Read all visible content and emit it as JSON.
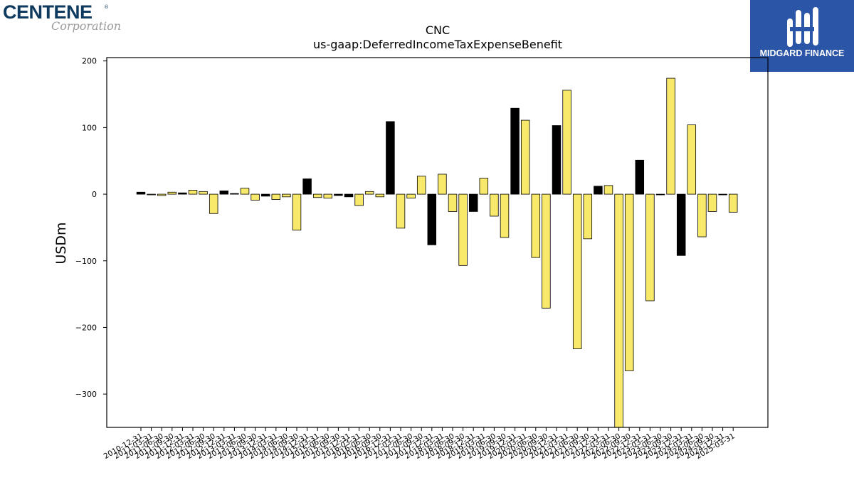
{
  "logos": {
    "left": {
      "name": "CENTENE",
      "sub": "Corporation",
      "reg": "®"
    },
    "right": {
      "name": "MIDGARD FINANCE"
    }
  },
  "colors": {
    "positive": "#000000",
    "negative_or_flow": "#f9e96b",
    "logo_bg": "#2b55a7"
  },
  "chart_data": {
    "type": "bar",
    "title": "CNC",
    "subtitle": "us-gaap:DeferredIncomeTaxExpenseBenefit",
    "xlabel": "",
    "ylabel": "USDm",
    "ylim": [
      -350,
      205
    ],
    "yticks": [
      200,
      100,
      0,
      -100,
      -200,
      -300
    ],
    "ytick_labels": [
      "200",
      "100",
      "0",
      "−100",
      "−200",
      "−300"
    ],
    "grid": false,
    "categories": [
      "2010-12-31",
      "2011-03-31",
      "2011-06-30",
      "2011-09-30",
      "2011-12-31",
      "2012-03-31",
      "2012-06-30",
      "2012-09-30",
      "2012-12-31",
      "2013-03-31",
      "2013-06-30",
      "2013-09-30",
      "2013-12-31",
      "2014-03-31",
      "2014-06-30",
      "2014-09-30",
      "2014-12-31",
      "2015-03-31",
      "2015-06-30",
      "2015-09-30",
      "2015-12-31",
      "2016-03-31",
      "2016-06-30",
      "2016-09-30",
      "2016-12-31",
      "2017-03-31",
      "2017-06-30",
      "2017-09-30",
      "2017-12-31",
      "2018-03-31",
      "2018-06-30",
      "2018-09-30",
      "2018-12-31",
      "2019-03-31",
      "2019-06-30",
      "2019-09-30",
      "2019-12-31",
      "2020-03-31",
      "2020-06-30",
      "2020-09-30",
      "2020-12-31",
      "2021-03-31",
      "2021-06-30",
      "2021-09-30",
      "2021-12-31",
      "2022-03-31",
      "2022-06-30",
      "2022-09-30",
      "2022-12-31",
      "2023-03-31",
      "2023-06-30",
      "2023-09-30",
      "2023-12-31",
      "2024-03-31",
      "2024-06-30",
      "2024-09-30",
      "2024-12-31",
      "2025-03-31"
    ],
    "values": [
      3,
      -1,
      -2,
      3,
      2,
      6,
      4,
      -29,
      5,
      1,
      9,
      -9,
      -3,
      -8,
      -4,
      -54,
      23,
      -5,
      -6,
      -2,
      -4,
      -17,
      4,
      -4,
      109,
      -51,
      -6,
      27,
      -76,
      30,
      -26,
      -107,
      -26,
      24,
      -33,
      -65,
      129,
      111,
      -95,
      -171,
      103,
      156,
      -232,
      -67,
      12,
      13,
      -350,
      -265,
      51,
      -160,
      -1,
      174,
      -92,
      104,
      -64,
      -26,
      -1,
      -27
    ],
    "fill": [
      "k",
      "y",
      "y",
      "y",
      "k",
      "y",
      "y",
      "y",
      "k",
      "k",
      "y",
      "y",
      "k",
      "y",
      "y",
      "y",
      "k",
      "y",
      "y",
      "k",
      "k",
      "y",
      "y",
      "y",
      "k",
      "y",
      "y",
      "y",
      "k",
      "y",
      "y",
      "y",
      "k",
      "y",
      "y",
      "y",
      "k",
      "y",
      "y",
      "y",
      "k",
      "y",
      "y",
      "y",
      "k",
      "y",
      "y",
      "y",
      "k",
      "y",
      "k",
      "y",
      "k",
      "y",
      "y",
      "y",
      "k",
      "y"
    ]
  }
}
